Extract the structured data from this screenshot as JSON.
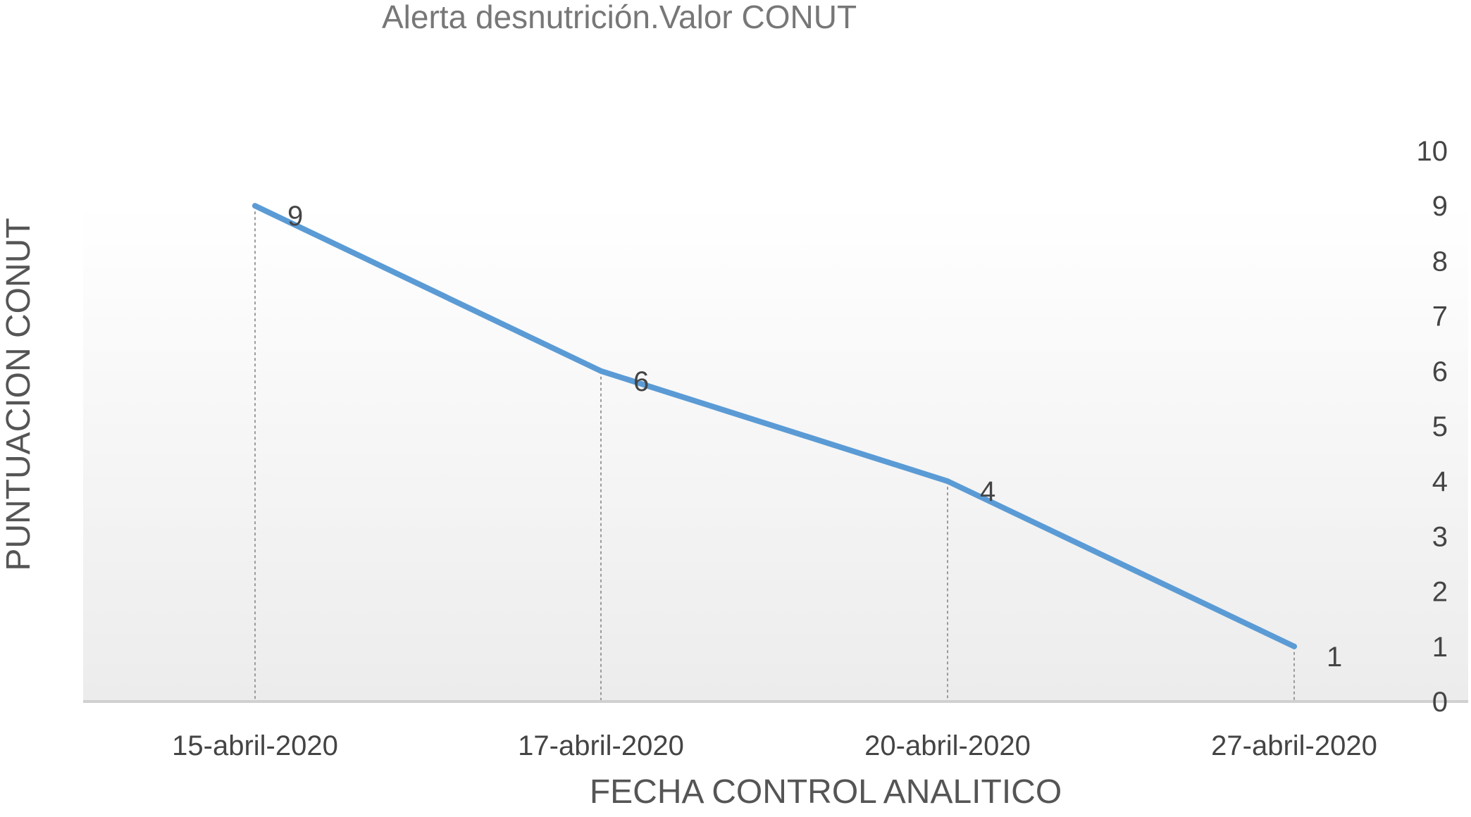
{
  "chart_data": {
    "type": "line",
    "title": "Alerta desnutrición.Valor CONUT",
    "xlabel": "FECHA CONTROL ANALITICO",
    "ylabel": "PUNTUACION CONUT",
    "categories": [
      "15-abril-2020",
      "17-abril-2020",
      "20-abril-2020",
      "27-abril-2020"
    ],
    "series": [
      {
        "values": [
          9,
          6,
          4,
          1
        ],
        "color": "#5B9BD5"
      }
    ],
    "ylim": [
      0,
      10
    ],
    "yticks": [
      0,
      1,
      2,
      3,
      4,
      5,
      6,
      7,
      8,
      9,
      10
    ],
    "y_axis_position": "right",
    "drop_lines": true,
    "data_labels": true,
    "grid": false,
    "legend": "none",
    "colors": {
      "line": "#5B9BD5",
      "axis": "#D0D0D0",
      "drop_line": "#9A9A9A",
      "background_top": "#FFFFFF",
      "background_bottom": "#ECECEC"
    }
  }
}
